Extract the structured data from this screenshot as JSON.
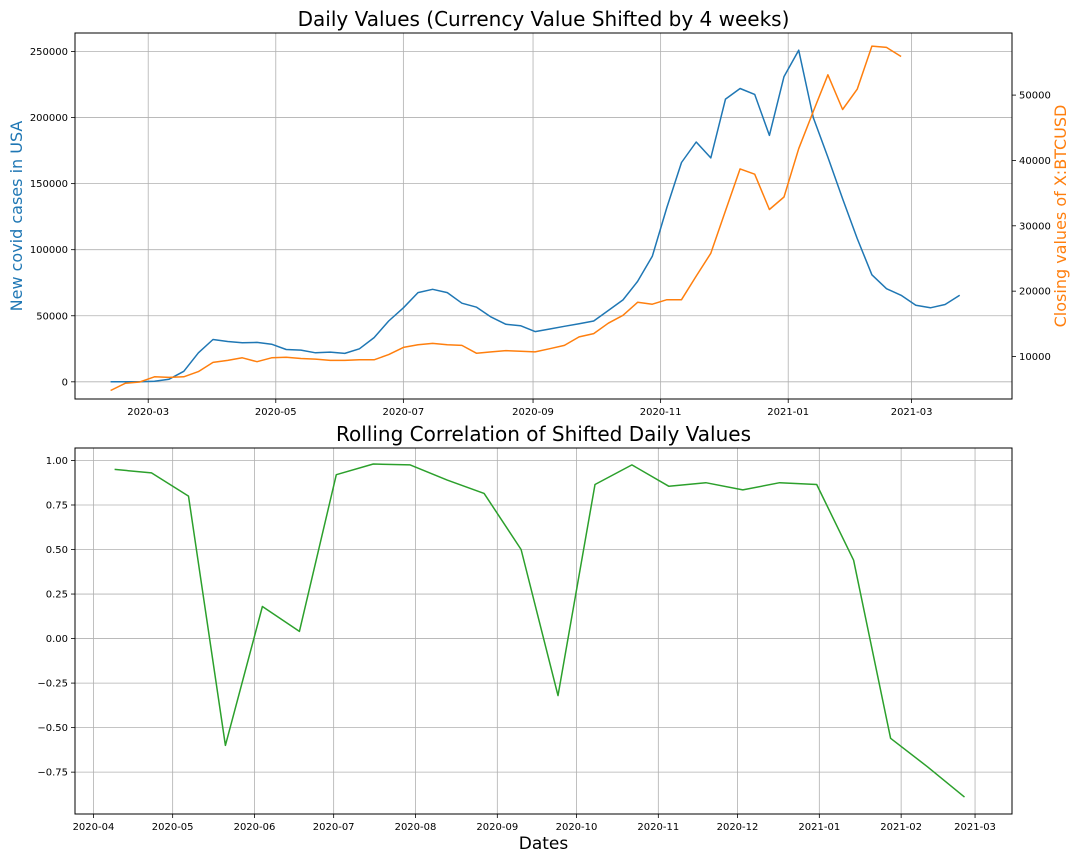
{
  "chart_data": [
    {
      "type": "line",
      "title": "Daily Values (Currency Value Shifted by 4 weeks)",
      "xlabel": "",
      "ylabel_left": "New covid cases in USA",
      "ylabel_right": "Closing values of X:BTCUSD",
      "grid": true,
      "x_ticks": [
        "2020-03",
        "2020-05",
        "2020-07",
        "2020-09",
        "2020-11",
        "2021-01",
        "2021-03"
      ],
      "y_left_ticks": [
        0,
        50000,
        100000,
        150000,
        200000,
        250000
      ],
      "y_left_tick_labels": [
        "0",
        "50000",
        "100000",
        "150000",
        "200000",
        "250000"
      ],
      "ylim_left": [
        -13000,
        264000
      ],
      "y_right_ticks": [
        10000,
        20000,
        30000,
        40000,
        50000
      ],
      "y_right_tick_labels": [
        "10000",
        "20000",
        "30000",
        "40000",
        "50000"
      ],
      "ylim_right": [
        3500,
        59500
      ],
      "xlim": [
        "2020-01-26",
        "2021-04-18"
      ],
      "series": [
        {
          "axis": "left",
          "color": "#1f77b4",
          "x": [
            "2020-02-12",
            "2020-02-19",
            "2020-02-26",
            "2020-03-04",
            "2020-03-11",
            "2020-03-18",
            "2020-03-25",
            "2020-04-01",
            "2020-04-08",
            "2020-04-15",
            "2020-04-22",
            "2020-04-29",
            "2020-05-06",
            "2020-05-13",
            "2020-05-20",
            "2020-05-27",
            "2020-06-03",
            "2020-06-10",
            "2020-06-17",
            "2020-06-24",
            "2020-07-01",
            "2020-07-08",
            "2020-07-15",
            "2020-07-22",
            "2020-07-29",
            "2020-08-05",
            "2020-08-12",
            "2020-08-19",
            "2020-08-26",
            "2020-09-02",
            "2020-09-09",
            "2020-09-16",
            "2020-09-23",
            "2020-09-30",
            "2020-10-07",
            "2020-10-14",
            "2020-10-21",
            "2020-10-28",
            "2020-11-04",
            "2020-11-11",
            "2020-11-18",
            "2020-11-25",
            "2020-12-02",
            "2020-12-09",
            "2020-12-16",
            "2020-12-23",
            "2020-12-30",
            "2021-01-06",
            "2021-01-13",
            "2021-01-20",
            "2021-01-27",
            "2021-02-03",
            "2021-02-10",
            "2021-02-17",
            "2021-02-24",
            "2021-03-03",
            "2021-03-10",
            "2021-03-17",
            "2021-03-24"
          ],
          "values": [
            0,
            0,
            0,
            500,
            2000,
            8000,
            22000,
            32000,
            30500,
            29500,
            29800,
            28500,
            24500,
            24000,
            22000,
            22500,
            21500,
            25000,
            33500,
            46000,
            56000,
            67500,
            70000,
            67500,
            59500,
            56500,
            49000,
            43500,
            42500,
            38000,
            40000,
            42000,
            44000,
            46000,
            54000,
            62000,
            76000,
            95000,
            132000,
            166000,
            181500,
            169500,
            214000,
            222000,
            217500,
            186500,
            231000,
            251000,
            200000,
            170000,
            138500,
            108500,
            81000,
            70500,
            65500,
            58000,
            56000,
            58500,
            65500
          ]
        },
        {
          "axis": "right",
          "color": "#ff7f0e",
          "x": [
            "2020-02-12",
            "2020-02-19",
            "2020-02-26",
            "2020-03-04",
            "2020-03-11",
            "2020-03-18",
            "2020-03-25",
            "2020-04-01",
            "2020-04-08",
            "2020-04-15",
            "2020-04-22",
            "2020-04-29",
            "2020-05-06",
            "2020-05-13",
            "2020-05-20",
            "2020-05-27",
            "2020-06-03",
            "2020-06-10",
            "2020-06-17",
            "2020-06-24",
            "2020-07-01",
            "2020-07-08",
            "2020-07-15",
            "2020-07-22",
            "2020-07-29",
            "2020-08-05",
            "2020-08-12",
            "2020-08-19",
            "2020-08-26",
            "2020-09-02",
            "2020-09-09",
            "2020-09-16",
            "2020-09-23",
            "2020-09-30",
            "2020-10-07",
            "2020-10-14",
            "2020-10-21",
            "2020-10-28",
            "2020-11-04",
            "2020-11-11",
            "2020-11-18",
            "2020-11-25",
            "2020-12-02",
            "2020-12-09",
            "2020-12-16",
            "2020-12-23",
            "2020-12-30",
            "2021-01-06",
            "2021-01-13",
            "2021-01-20",
            "2021-01-27",
            "2021-02-03",
            "2021-02-10",
            "2021-02-17",
            "2021-02-24"
          ],
          "values": [
            4800,
            5900,
            6100,
            6900,
            6800,
            6900,
            7700,
            9100,
            9400,
            9800,
            9200,
            9800,
            9900,
            9700,
            9600,
            9400,
            9400,
            9500,
            9500,
            10300,
            11400,
            11800,
            12000,
            11800,
            11700,
            10500,
            10700,
            10900,
            10800,
            10700,
            11200,
            11700,
            13000,
            13500,
            15100,
            16300,
            18300,
            18000,
            18700,
            18700,
            22300,
            25800,
            32300,
            38700,
            37900,
            32500,
            34400,
            41800,
            47500,
            53100,
            47800,
            50900,
            57500,
            57300,
            55900
          ]
        }
      ]
    },
    {
      "type": "line",
      "title": "Rolling Correlation of Shifted Daily Values",
      "xlabel": "Dates",
      "ylabel": "",
      "grid": true,
      "x_ticks": [
        "2020-04",
        "2020-05",
        "2020-06",
        "2020-07",
        "2020-08",
        "2020-09",
        "2020-10",
        "2020-11",
        "2020-12",
        "2021-01",
        "2021-02",
        "2021-03"
      ],
      "y_ticks": [
        -0.75,
        -0.5,
        -0.25,
        0.0,
        0.25,
        0.5,
        0.75,
        1.0
      ],
      "y_tick_labels": [
        "−0.75",
        "−0.50",
        "−0.25",
        "0.00",
        "0.25",
        "0.50",
        "0.75",
        "1.00"
      ],
      "ylim": [
        -0.985,
        1.07
      ],
      "xlim": [
        "2020-03-25",
        "2021-03-15"
      ],
      "series": [
        {
          "color": "#2ca02c",
          "x": [
            "2020-04-09",
            "2020-04-23",
            "2020-05-07",
            "2020-05-21",
            "2020-06-04",
            "2020-06-18",
            "2020-07-02",
            "2020-07-16",
            "2020-07-30",
            "2020-08-13",
            "2020-08-27",
            "2020-09-10",
            "2020-09-24",
            "2020-10-08",
            "2020-10-22",
            "2020-11-05",
            "2020-11-19",
            "2020-12-03",
            "2020-12-17",
            "2020-12-31",
            "2021-01-14",
            "2021-01-28",
            "2021-02-11",
            "2021-02-25"
          ],
          "values": [
            0.95,
            0.93,
            0.8,
            -0.6,
            0.18,
            0.04,
            0.92,
            0.98,
            0.975,
            0.89,
            0.815,
            0.5,
            -0.32,
            0.865,
            0.975,
            0.855,
            0.875,
            0.835,
            0.875,
            0.865,
            0.44,
            -0.56,
            -0.72,
            -0.89
          ]
        }
      ]
    }
  ]
}
